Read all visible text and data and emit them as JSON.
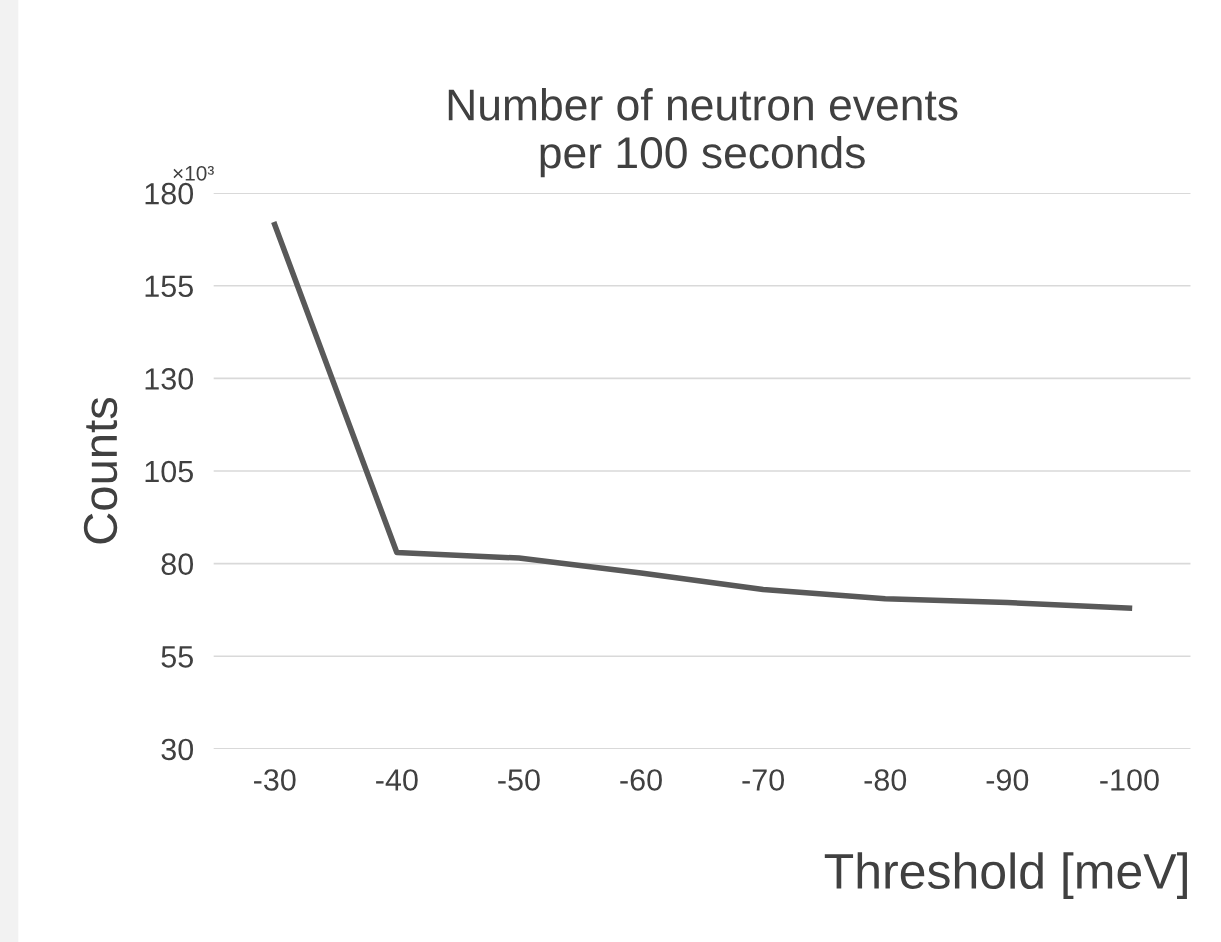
{
  "chart_data": {
    "type": "line",
    "title": "Number of neutron events\nper 100 seconds",
    "xlabel": "Threshold [meV]",
    "ylabel": "Counts",
    "annotations": [
      "×10³"
    ],
    "categories": [
      "-30",
      "-40",
      "-50",
      "-60",
      "-70",
      "-80",
      "-90",
      "-100"
    ],
    "series": [
      {
        "color": "#595959",
        "values": [
          171.5,
          83,
          81.5,
          77.5,
          73,
          70.5,
          69.5,
          68
        ]
      }
    ],
    "ylim": [
      30,
      180
    ],
    "yticks": [
      30,
      55,
      80,
      105,
      130,
      155,
      180
    ],
    "grid": "y",
    "legend": false,
    "marker": "none",
    "line_style": "solid"
  }
}
